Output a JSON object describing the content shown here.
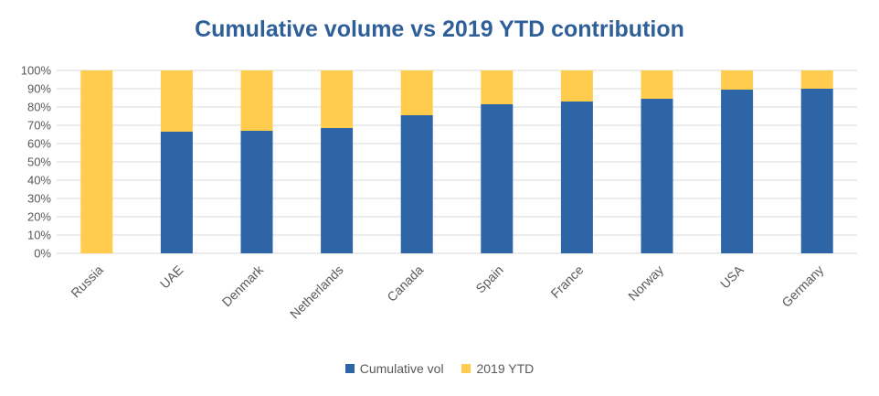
{
  "chart_data": {
    "type": "bar",
    "stacked": true,
    "title": "Cumulative volume vs 2019 YTD contribution",
    "xlabel": "",
    "ylabel": "",
    "ylim": [
      0,
      100
    ],
    "yticks": [
      "0%",
      "10%",
      "20%",
      "30%",
      "40%",
      "50%",
      "60%",
      "70%",
      "80%",
      "90%",
      "100%"
    ],
    "categories": [
      "Russia",
      "UAE",
      "Denmark",
      "Netherlands",
      "Canada",
      "Spain",
      "France",
      "Norway",
      "USA",
      "Germany"
    ],
    "series": [
      {
        "name": "Cumulative vol",
        "color": "#2E65A6",
        "values": [
          0,
          66.5,
          67,
          68.5,
          75.5,
          81.5,
          83,
          84.5,
          89.5,
          90
        ]
      },
      {
        "name": "2019 YTD",
        "color": "#FFCC4D",
        "values": [
          100,
          33.5,
          33,
          31.5,
          24.5,
          18.5,
          17,
          15.5,
          10.5,
          10
        ]
      }
    ],
    "grid": true,
    "legend_position": "bottom"
  }
}
